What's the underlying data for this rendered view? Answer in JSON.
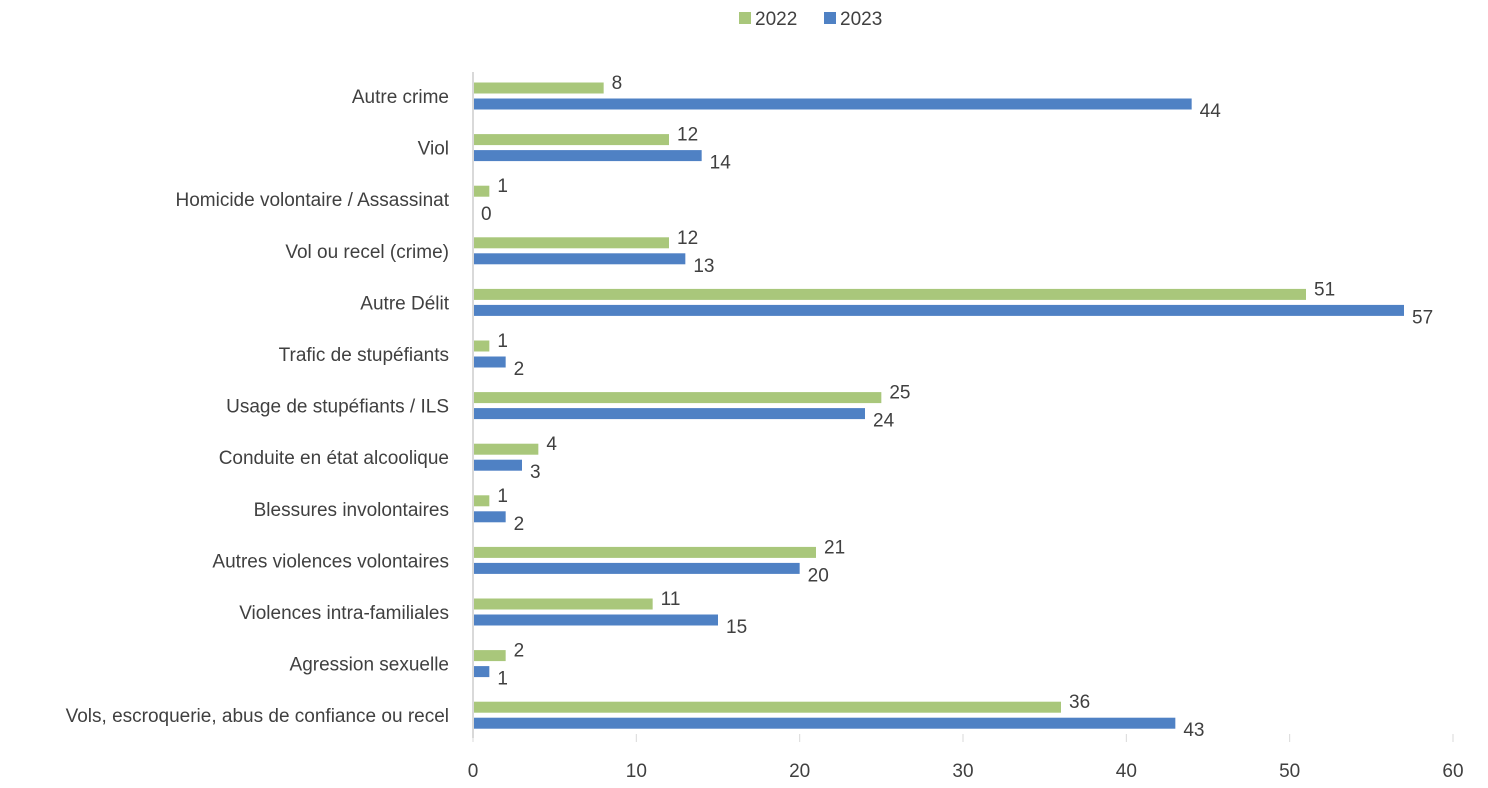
{
  "chart_data": {
    "type": "bar",
    "orientation": "horizontal",
    "categories": [
      "Autre crime",
      "Viol",
      "Homicide volontaire / Assassinat",
      "Vol ou recel (crime)",
      "Autre Délit",
      "Trafic de stupéfiants",
      "Usage de stupéfiants / ILS",
      "Conduite en état alcoolique",
      "Blessures involontaires",
      "Autres violences volontaires",
      "Violences intra-familiales",
      "Agression sexuelle",
      "Vols, escroquerie, abus de confiance ou recel"
    ],
    "series": [
      {
        "name": "2022",
        "color": "#a9c77b",
        "values": [
          8,
          12,
          1,
          12,
          51,
          1,
          25,
          4,
          1,
          21,
          11,
          2,
          36
        ]
      },
      {
        "name": "2023",
        "color": "#4f81c4",
        "values": [
          44,
          14,
          0,
          13,
          57,
          2,
          24,
          3,
          2,
          20,
          15,
          1,
          43
        ]
      }
    ],
    "xlim": [
      0,
      60
    ],
    "xticks": [
      0,
      10,
      20,
      30,
      40,
      50,
      60
    ],
    "grid": false,
    "legend_position": "top-center",
    "axis_color": "#d9d9d9",
    "text_color": "#404040"
  }
}
